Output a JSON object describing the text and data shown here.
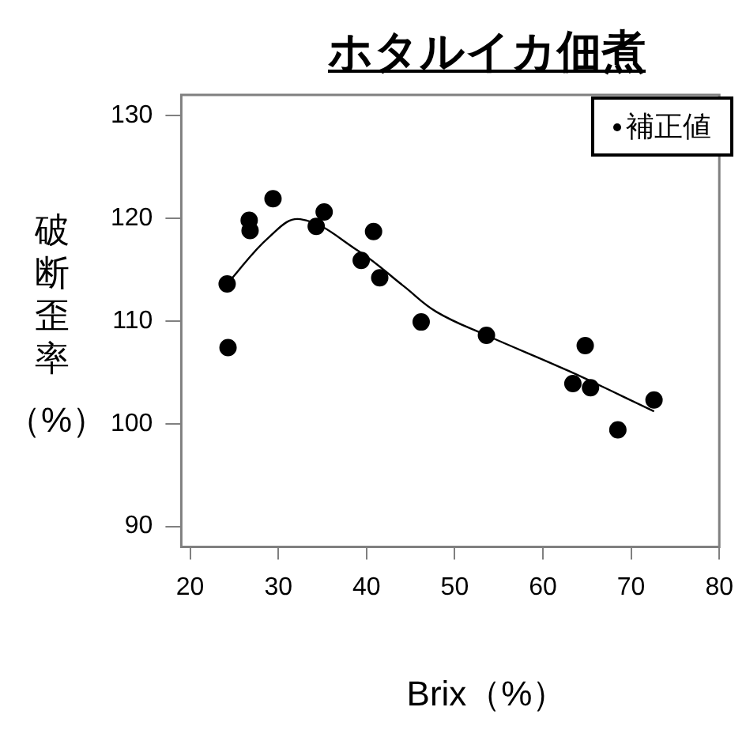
{
  "chart_data": {
    "type": "scatter",
    "title": "ホタルイカ佃煮",
    "xlabel": "Brix（%）",
    "ylabel": "破断歪率（%）",
    "xlim": [
      19,
      80
    ],
    "xticks": [
      20,
      30,
      40,
      50,
      60,
      70,
      80
    ],
    "ylim": [
      88,
      132
    ],
    "yticks": [
      90,
      100,
      110,
      120,
      130
    ],
    "grid": false,
    "legend": "top right",
    "marker": "circle",
    "series": [
      {
        "name": "補正値",
        "type": "scatter",
        "color": "#000000",
        "x": [
          24.2,
          24.3,
          26.7,
          26.8,
          29.4,
          34.3,
          35.2,
          39.4,
          40.8,
          41.5,
          46.2,
          53.6,
          64.8,
          63.4,
          65.4,
          68.5,
          72.6
        ],
        "values": [
          113.6,
          107.4,
          119.8,
          118.8,
          121.9,
          119.2,
          120.6,
          115.9,
          118.7,
          114.2,
          109.9,
          108.6,
          107.6,
          103.9,
          103.5,
          99.4,
          102.3
        ]
      },
      {
        "type": "line",
        "color": "#000000",
        "marker": "none",
        "x": [
          24.2,
          29,
          32.5,
          39.1,
          44.2,
          47.9,
          53.6,
          63,
          72.6
        ],
        "values": [
          113.6,
          118.2,
          119.9,
          116.8,
          113.4,
          110.9,
          108.6,
          105.1,
          101.2
        ]
      }
    ]
  }
}
